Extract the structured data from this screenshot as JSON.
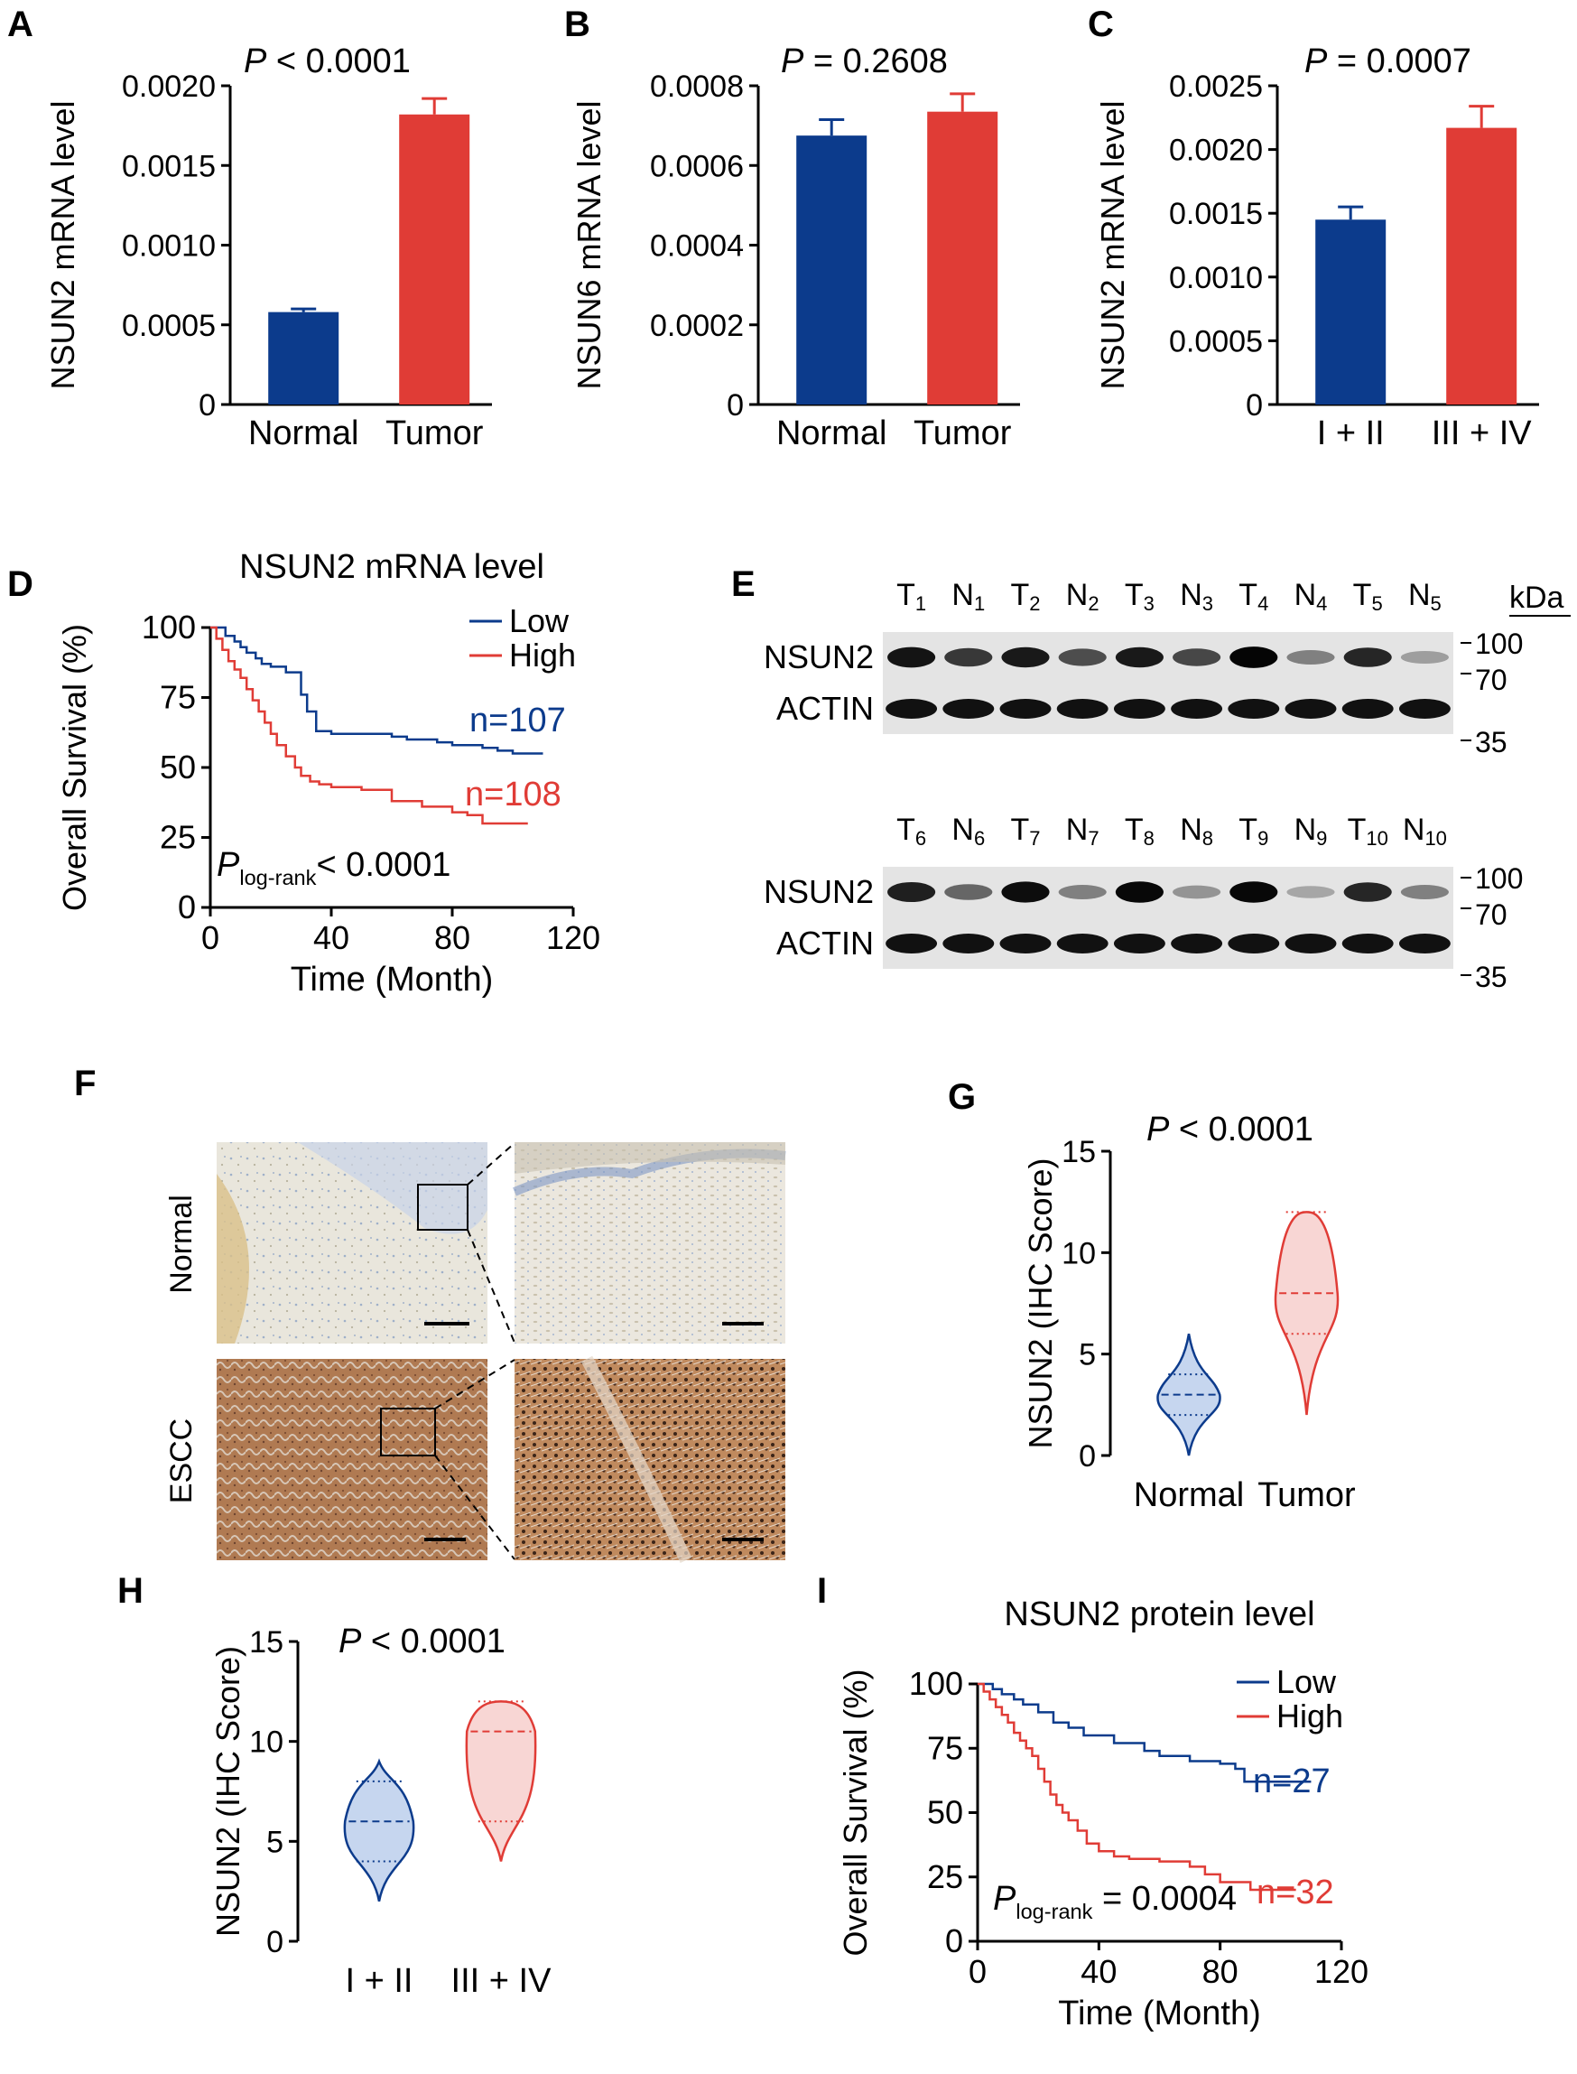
{
  "colors": {
    "blue": "#0c3b8c",
    "red": "#e03c36",
    "black": "#000000"
  },
  "panel_labels": {
    "A": "A",
    "B": "B",
    "C": "C",
    "D": "D",
    "E": "E",
    "F": "F",
    "G": "G",
    "H": "H",
    "I": "I"
  },
  "chart_data": [
    {
      "id": "A",
      "type": "bar",
      "categories": [
        "Normal",
        "Tumor"
      ],
      "values": [
        0.00058,
        0.00182
      ],
      "errors": [
        2e-05,
        0.0001
      ],
      "ylabel": "NSUN2 mRNA level",
      "ylim": [
        0,
        0.002
      ],
      "yticks": [
        0,
        0.0005,
        0.001,
        0.0015,
        0.002
      ],
      "ytick_labels": [
        "0",
        "0.0005",
        "0.0010",
        "0.0015",
        "0.0020"
      ],
      "p_prefix": "P",
      "p_text": " < 0.0001"
    },
    {
      "id": "B",
      "type": "bar",
      "categories": [
        "Normal",
        "Tumor"
      ],
      "values": [
        0.000675,
        0.000735
      ],
      "errors": [
        4e-05,
        4.5e-05
      ],
      "ylabel": "NSUN6 mRNA level",
      "ylim": [
        0,
        0.0008
      ],
      "yticks": [
        0,
        0.0002,
        0.0004,
        0.0006,
        0.0008
      ],
      "ytick_labels": [
        "0",
        "0.0002",
        "0.0004",
        "0.0006",
        "0.0008"
      ],
      "p_prefix": "P",
      "p_text": " = 0.2608"
    },
    {
      "id": "C",
      "type": "bar",
      "categories": [
        "I + II",
        "III + IV"
      ],
      "values": [
        0.00145,
        0.00217
      ],
      "errors": [
        0.0001,
        0.00017
      ],
      "ylabel": "NSUN2 mRNA level",
      "ylim": [
        0,
        0.0025
      ],
      "yticks": [
        0,
        0.0005,
        0.001,
        0.0015,
        0.002,
        0.0025
      ],
      "ytick_labels": [
        "0",
        "0.0005",
        "0.0010",
        "0.0015",
        "0.0020",
        "0.0025"
      ],
      "p_prefix": "P",
      "p_text": " = 0.0007"
    },
    {
      "id": "D",
      "type": "line",
      "subtype": "kaplan-meier",
      "title": "NSUN2 mRNA level",
      "xlabel": "Time (Month)",
      "ylabel": "Overall Survival (%)",
      "xlim": [
        0,
        120
      ],
      "ylim": [
        0,
        100
      ],
      "xticks": [
        0,
        40,
        80,
        120
      ],
      "yticks": [
        0,
        25,
        50,
        75,
        100
      ],
      "series": [
        {
          "name": "Low",
          "n_label": "n=107",
          "x": [
            0,
            5,
            8,
            10,
            12,
            15,
            17,
            20,
            25,
            30,
            32,
            35,
            40,
            50,
            60,
            65,
            75,
            80,
            90,
            95,
            100,
            110
          ],
          "y": [
            100,
            97,
            95,
            93,
            91,
            89,
            87,
            86,
            84,
            76,
            70,
            63,
            62,
            62,
            61,
            60,
            59,
            58,
            57,
            56,
            55,
            55
          ]
        },
        {
          "name": "High",
          "n_label": "n=108",
          "x": [
            0,
            2,
            4,
            6,
            8,
            10,
            12,
            14,
            16,
            18,
            20,
            22,
            25,
            28,
            30,
            33,
            36,
            40,
            50,
            60,
            70,
            80,
            85,
            90,
            105
          ],
          "y": [
            100,
            96,
            92,
            88,
            85,
            82,
            78,
            74,
            70,
            66,
            62,
            58,
            54,
            50,
            47,
            45,
            44,
            43,
            42,
            38,
            36,
            34,
            33,
            30,
            30
          ]
        }
      ],
      "p_prefix": "P",
      "p_sub": "log-rank",
      "p_text": "< 0.0001"
    },
    {
      "id": "G",
      "type": "violin",
      "categories": [
        "Normal",
        "Tumor"
      ],
      "ylabel": "NSUN2 (IHC Score)",
      "ylim": [
        0,
        15
      ],
      "yticks": [
        0,
        5,
        10,
        15
      ],
      "violins": [
        {
          "min": 0,
          "max": 6,
          "median": 3,
          "q1": 2,
          "q3": 4
        },
        {
          "min": 2,
          "max": 12,
          "median": 8,
          "q1": 6,
          "q3": 12
        }
      ],
      "p_prefix": "P",
      "p_text": " < 0.0001"
    },
    {
      "id": "H",
      "type": "violin",
      "categories": [
        "I + II",
        "III + IV"
      ],
      "ylabel": "NSUN2 (IHC Score)",
      "ylim": [
        0,
        15
      ],
      "yticks": [
        0,
        5,
        10,
        15
      ],
      "violins": [
        {
          "min": 2,
          "max": 9,
          "median": 6,
          "q1": 4,
          "q3": 8
        },
        {
          "min": 4,
          "max": 12,
          "median": 10.5,
          "q1": 6,
          "q3": 12
        }
      ],
      "p_prefix": "P",
      "p_text": " < 0.0001"
    },
    {
      "id": "I",
      "type": "line",
      "subtype": "kaplan-meier",
      "title": "NSUN2 protein level",
      "xlabel": "Time (Month)",
      "ylabel": "Overall Survival (%)",
      "xlim": [
        0,
        120
      ],
      "ylim": [
        0,
        100
      ],
      "xticks": [
        0,
        40,
        80,
        120
      ],
      "yticks": [
        0,
        25,
        50,
        75,
        100
      ],
      "series": [
        {
          "name": "Low",
          "n_label": "n=27",
          "x": [
            0,
            5,
            8,
            12,
            15,
            20,
            25,
            30,
            35,
            45,
            55,
            60,
            70,
            80,
            85,
            88,
            95,
            110
          ],
          "y": [
            100,
            98,
            96,
            94,
            92,
            89,
            85,
            83,
            80,
            77,
            74,
            72,
            70,
            69,
            67,
            62,
            62,
            62
          ]
        },
        {
          "name": "High",
          "n_label": "n=32",
          "x": [
            0,
            2,
            4,
            6,
            8,
            10,
            12,
            14,
            16,
            18,
            20,
            22,
            24,
            26,
            28,
            30,
            33,
            36,
            40,
            45,
            50,
            60,
            70,
            75,
            80,
            90,
            105
          ],
          "y": [
            100,
            97,
            94,
            91,
            88,
            85,
            81,
            78,
            75,
            72,
            67,
            62,
            57,
            53,
            50,
            47,
            43,
            38,
            35,
            33,
            32,
            31,
            29,
            26,
            23,
            20,
            20
          ]
        }
      ],
      "p_prefix": "P",
      "p_sub": "log-rank",
      "p_text": " = 0.0004"
    }
  ],
  "western_blot": {
    "kda_label": "kDa",
    "rows": [
      {
        "lanes": [
          [
            "T",
            "1"
          ],
          [
            "N",
            "1"
          ],
          [
            "T",
            "2"
          ],
          [
            "N",
            "2"
          ],
          [
            "T",
            "3"
          ],
          [
            "N",
            "3"
          ],
          [
            "T",
            "4"
          ],
          [
            "N",
            "4"
          ],
          [
            "T",
            "5"
          ],
          [
            "N",
            "5"
          ]
        ],
        "nsun2_intensity": [
          0.92,
          0.78,
          0.9,
          0.7,
          0.9,
          0.72,
          0.98,
          0.5,
          0.85,
          0.38
        ]
      },
      {
        "lanes": [
          [
            "T",
            "6"
          ],
          [
            "N",
            "6"
          ],
          [
            "T",
            "7"
          ],
          [
            "N",
            "7"
          ],
          [
            "T",
            "8"
          ],
          [
            "N",
            "8"
          ],
          [
            "T",
            "9"
          ],
          [
            "N",
            "9"
          ],
          [
            "T",
            "10"
          ],
          [
            "N",
            "10"
          ]
        ],
        "nsun2_intensity": [
          0.88,
          0.6,
          0.95,
          0.5,
          0.97,
          0.42,
          0.97,
          0.35,
          0.85,
          0.5
        ]
      }
    ],
    "band_labels": [
      "NSUN2",
      "ACTIN"
    ],
    "markers_nsun2": [
      "100",
      "70"
    ],
    "markers_actin": [
      "35"
    ]
  },
  "ihc": {
    "row_labels": [
      "Normal",
      "ESCC"
    ]
  }
}
